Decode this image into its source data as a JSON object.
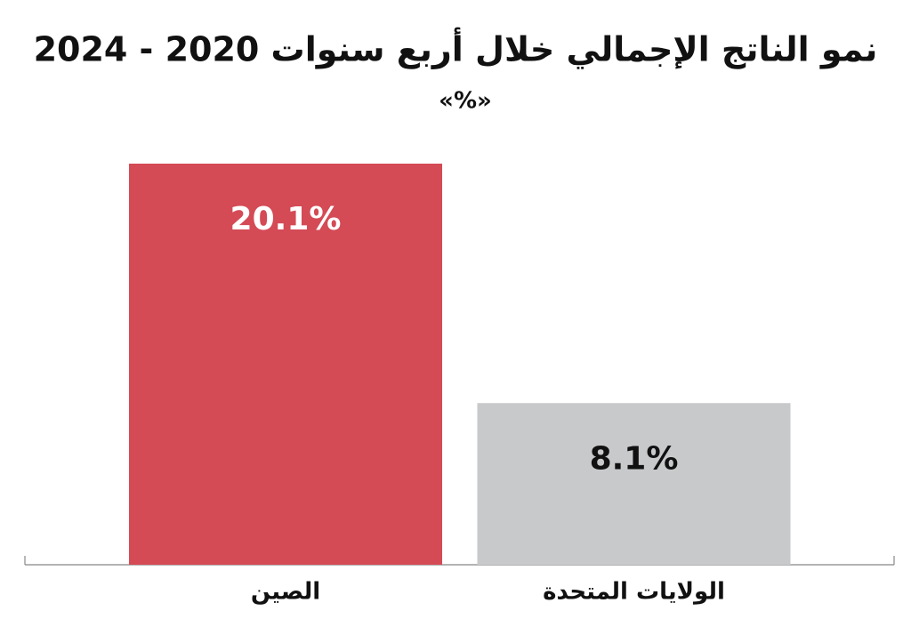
{
  "chart_data": {
    "type": "bar",
    "title": "نمو الناتج الإجمالي خلال أربع سنوات 2020 - 2024",
    "subtitle": "«%»",
    "categories": [
      "الصين",
      "الولايات المتحدة"
    ],
    "values": [
      20.1,
      8.1
    ],
    "value_labels": [
      "20.1%",
      "8.1%"
    ],
    "colors": [
      "#d44a55",
      "#c8c9cb"
    ],
    "label_colors": [
      "#ffffff",
      "#111111"
    ]
  }
}
